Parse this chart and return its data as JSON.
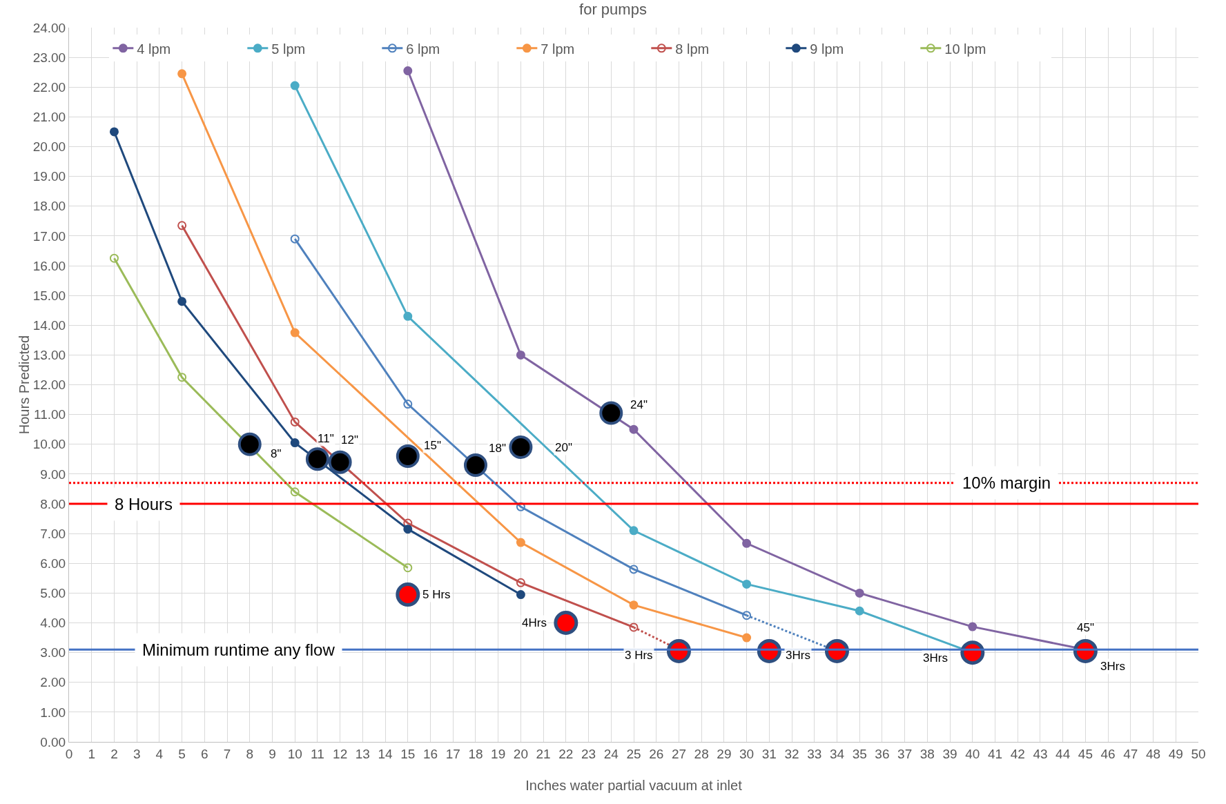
{
  "chart_data": {
    "type": "line",
    "title": "for pumps",
    "xlabel": "Inches water partial vacuum at inlet",
    "ylabel": "Hours Predicted",
    "xlim": [
      0,
      50
    ],
    "xticks": [
      0,
      1,
      2,
      3,
      4,
      5,
      6,
      7,
      8,
      9,
      10,
      11,
      12,
      13,
      14,
      15,
      16,
      17,
      18,
      19,
      20,
      21,
      22,
      23,
      24,
      25,
      26,
      27,
      28,
      29,
      30,
      31,
      32,
      33,
      34,
      35,
      36,
      37,
      38,
      39,
      40,
      41,
      42,
      43,
      44,
      45,
      46,
      47,
      48,
      49,
      50
    ],
    "ylim": [
      0,
      24
    ],
    "yticks": [
      {
        "value": 0,
        "label": "0.00"
      },
      {
        "value": 1,
        "label": "1.00"
      },
      {
        "value": 2,
        "label": "2.00"
      },
      {
        "value": 3,
        "label": "3.00"
      },
      {
        "value": 4,
        "label": "4.00"
      },
      {
        "value": 5,
        "label": "5.00"
      },
      {
        "value": 6,
        "label": "6.00"
      },
      {
        "value": 7,
        "label": "7.00"
      },
      {
        "value": 8,
        "label": "8.00"
      },
      {
        "value": 9,
        "label": "9.00"
      },
      {
        "value": 10,
        "label": "10.00"
      },
      {
        "value": 11,
        "label": "11.00"
      },
      {
        "value": 12,
        "label": "12.00"
      },
      {
        "value": 13,
        "label": "13.00"
      },
      {
        "value": 14,
        "label": "14.00"
      },
      {
        "value": 15,
        "label": "15.00"
      },
      {
        "value": 16,
        "label": "16.00"
      },
      {
        "value": 17,
        "label": "17.00"
      },
      {
        "value": 18,
        "label": "18.00"
      },
      {
        "value": 19,
        "label": "19.00"
      },
      {
        "value": 20,
        "label": "20.00"
      },
      {
        "value": 21,
        "label": "21.00"
      },
      {
        "value": 22,
        "label": "22.00"
      },
      {
        "value": 23,
        "label": "23.00"
      },
      {
        "value": 24,
        "label": "24.00"
      }
    ],
    "grid": true,
    "legend": "top",
    "marker": "circle",
    "line_style": "solid",
    "series": [
      {
        "name": "4 lpm",
        "color": "#8064a2",
        "x": [
          15,
          20,
          25,
          30,
          35,
          40,
          45
        ],
        "values": [
          22.55,
          13.0,
          10.5,
          6.67,
          5.0,
          3.87,
          3.1
        ]
      },
      {
        "name": "5 lpm",
        "color": "#4bacc6",
        "x": [
          10,
          15,
          25,
          30,
          35,
          40
        ],
        "values": [
          22.05,
          14.3,
          7.1,
          5.3,
          4.4,
          3.0
        ]
      },
      {
        "name": "6 lpm",
        "color": "#4f81bd",
        "marker": "circle-open",
        "x": [
          10,
          15,
          20,
          25,
          30
        ],
        "values": [
          16.9,
          11.35,
          7.9,
          5.8,
          4.25
        ]
      },
      {
        "name": "7 lpm",
        "color": "#f79646",
        "x": [
          5,
          10,
          20,
          25,
          30
        ],
        "values": [
          22.45,
          13.75,
          6.7,
          4.6,
          3.5
        ]
      },
      {
        "name": "8 lpm",
        "color": "#c0504d",
        "marker": "circle-open",
        "x": [
          5,
          10,
          15,
          20,
          25
        ],
        "values": [
          17.35,
          10.75,
          7.35,
          5.35,
          3.85
        ]
      },
      {
        "name": "9 lpm",
        "color": "#1f497d",
        "x": [
          2,
          5,
          10,
          15,
          20
        ],
        "values": [
          20.5,
          14.8,
          10.05,
          7.15,
          4.95
        ]
      },
      {
        "name": "10 lpm",
        "color": "#9bbb59",
        "marker": "circle-open",
        "x": [
          2,
          5,
          10,
          15
        ],
        "values": [
          16.25,
          12.25,
          8.4,
          5.85
        ]
      },
      {
        "type": "line",
        "color": "#c0504d",
        "line_style": "dotted",
        "marker": "none",
        "x": [
          25,
          27
        ],
        "values": [
          3.85,
          3.1
        ]
      },
      {
        "type": "line",
        "color": "#4f81bd",
        "line_style": "dotted",
        "marker": "none",
        "x": [
          30,
          34
        ],
        "values": [
          4.25,
          3.05
        ]
      },
      {
        "type": "scatter",
        "color": "#000000",
        "x": [
          8,
          11,
          12,
          15,
          18,
          20,
          24
        ],
        "values": [
          10.0,
          9.5,
          9.4,
          9.6,
          9.3,
          9.9,
          11.05
        ]
      },
      {
        "type": "scatter",
        "color": "#ff0000",
        "x": [
          15,
          22,
          27,
          31,
          34,
          40,
          45
        ],
        "values": [
          4.95,
          4.0,
          3.05,
          3.05,
          3.05,
          3.0,
          3.05
        ]
      }
    ],
    "ref_lines": [
      {
        "axis": "y",
        "value": 8,
        "label": "8 Hours",
        "color": "#ff0000",
        "line_style": "solid"
      },
      {
        "axis": "y",
        "value": 8.7,
        "label": "10% margin",
        "color": "#ff0000",
        "line_style": "dotted"
      },
      {
        "axis": "y",
        "value": 3.1,
        "label": "Minimum runtime any flow",
        "color": "#4472c4",
        "line_style": "solid"
      }
    ],
    "annotations": [
      {
        "text": "8\"",
        "x": 8,
        "y": 10.0
      },
      {
        "text": "11\"",
        "x": 11,
        "y": 9.5
      },
      {
        "text": "12\"",
        "x": 12,
        "y": 9.4
      },
      {
        "text": "15\"",
        "x": 15,
        "y": 9.6
      },
      {
        "text": "18\"",
        "x": 18,
        "y": 9.3
      },
      {
        "text": "20\"",
        "x": 20,
        "y": 9.9
      },
      {
        "text": "24\"",
        "x": 24,
        "y": 11.05
      },
      {
        "text": "5 Hrs",
        "x": 15,
        "y": 4.95
      },
      {
        "text": "4Hrs",
        "x": 22,
        "y": 4.0
      },
      {
        "text": "3 Hrs",
        "x": 27,
        "y": 3.05
      },
      {
        "text": "3Hrs",
        "x": 31,
        "y": 3.05
      },
      {
        "text": "3Hrs",
        "x": 40,
        "y": 3.0
      },
      {
        "text": "3Hrs",
        "x": 45,
        "y": 3.05
      },
      {
        "text": "45\"",
        "x": 45,
        "y": 3.05
      }
    ]
  }
}
